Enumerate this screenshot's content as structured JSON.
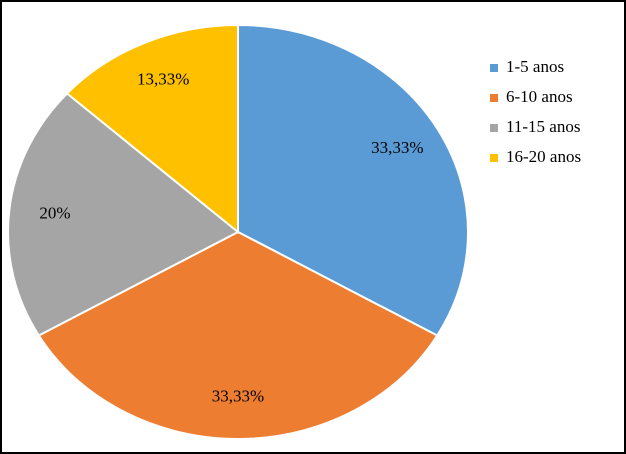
{
  "chart_data": {
    "type": "pie",
    "categories": [
      "1-5 anos",
      "6-10 anos",
      "11-15 anos",
      "16-20 anos"
    ],
    "values": [
      33.33,
      33.33,
      20,
      13.33
    ],
    "value_labels": [
      "33,33%",
      "33,33%",
      "20%",
      "13,33%"
    ],
    "colors": [
      "#5b9bd5",
      "#ed7d31",
      "#a5a5a5",
      "#ffc000"
    ],
    "legend": "right"
  }
}
